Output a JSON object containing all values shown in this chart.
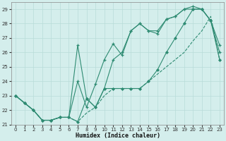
{
  "xlabel": "Humidex (Indice chaleur)",
  "x": [
    0,
    1,
    2,
    3,
    4,
    5,
    6,
    7,
    8,
    9,
    10,
    11,
    12,
    13,
    14,
    15,
    16,
    17,
    18,
    19,
    20,
    21,
    22,
    23
  ],
  "line_straight": [
    23.0,
    22.5,
    22.0,
    21.3,
    21.3,
    21.5,
    21.5,
    21.2,
    21.8,
    22.2,
    23.0,
    23.5,
    23.5,
    23.5,
    23.5,
    24.0,
    24.5,
    25.0,
    25.5,
    26.0,
    26.8,
    27.5,
    28.5,
    25.5
  ],
  "line_mid": [
    23.0,
    22.5,
    22.0,
    21.3,
    21.3,
    21.5,
    21.5,
    21.2,
    22.8,
    22.2,
    23.5,
    23.5,
    23.5,
    23.5,
    23.5,
    24.0,
    24.8,
    26.0,
    27.0,
    28.0,
    29.0,
    29.0,
    28.2,
    25.5
  ],
  "line_top": [
    23.0,
    22.5,
    22.0,
    21.3,
    21.3,
    21.5,
    21.5,
    26.5,
    22.8,
    22.2,
    23.5,
    25.5,
    26.0,
    27.5,
    28.0,
    27.5,
    27.5,
    28.3,
    28.5,
    29.0,
    29.2,
    29.0,
    28.2,
    26.5
  ],
  "line_mid2": [
    23.0,
    22.5,
    22.0,
    21.3,
    21.3,
    21.5,
    21.5,
    24.0,
    22.2,
    23.8,
    25.5,
    26.6,
    25.8,
    27.5,
    28.0,
    27.5,
    27.3,
    28.3,
    28.5,
    29.0,
    29.0,
    29.0,
    28.2,
    26.0
  ],
  "color": "#2e8b72",
  "bg_color": "#d4eeec",
  "grid_color": "#b8dcd8",
  "ylim_min": 21,
  "ylim_max": 29.5,
  "yticks": [
    21,
    22,
    23,
    24,
    25,
    26,
    27,
    28,
    29
  ],
  "xticks": [
    0,
    1,
    2,
    3,
    4,
    5,
    6,
    7,
    8,
    9,
    10,
    11,
    12,
    13,
    14,
    15,
    16,
    17,
    18,
    19,
    20,
    21,
    22,
    23
  ]
}
